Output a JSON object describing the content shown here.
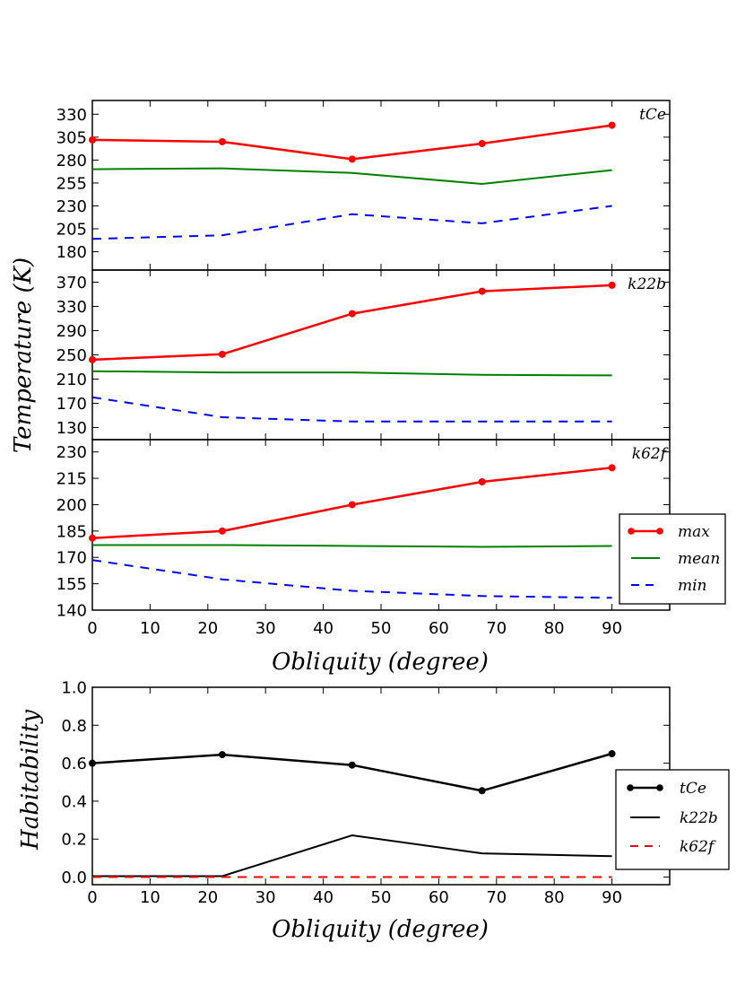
{
  "chart_data": [
    {
      "type": "line",
      "panel": "tCe",
      "panel_label": "tCe",
      "x": [
        0,
        22.5,
        45,
        67.5,
        90
      ],
      "ylim": [
        160,
        345
      ],
      "yticks": [
        180,
        205,
        230,
        255,
        280,
        305,
        330
      ],
      "series": [
        {
          "name": "max",
          "color": "#ff0000",
          "style": "solid-marker",
          "values": [
            302,
            300,
            281,
            298,
            318
          ]
        },
        {
          "name": "mean",
          "color": "#008000",
          "style": "solid",
          "values": [
            270,
            271,
            266,
            254,
            269
          ]
        },
        {
          "name": "min",
          "color": "#0000ff",
          "style": "dashed",
          "values": [
            194,
            198,
            221,
            211,
            230
          ]
        }
      ]
    },
    {
      "type": "line",
      "panel": "k22b",
      "panel_label": "k22b",
      "x": [
        0,
        22.5,
        45,
        67.5,
        90
      ],
      "ylim": [
        110,
        390
      ],
      "yticks": [
        130,
        170,
        210,
        250,
        290,
        330,
        370
      ],
      "series": [
        {
          "name": "max",
          "color": "#ff0000",
          "style": "solid-marker",
          "values": [
            242,
            251,
            318,
            355,
            365
          ]
        },
        {
          "name": "mean",
          "color": "#008000",
          "style": "solid",
          "values": [
            223,
            221,
            221,
            217,
            216
          ]
        },
        {
          "name": "min",
          "color": "#0000ff",
          "style": "dashed",
          "values": [
            180,
            147,
            140,
            140,
            140
          ]
        }
      ]
    },
    {
      "type": "line",
      "panel": "k62f",
      "panel_label": "k62f",
      "title": "",
      "xlabel": "Obliquity (degree)",
      "ylabel": "Temperature (K)",
      "x": [
        0,
        22.5,
        45,
        67.5,
        90
      ],
      "xlim": [
        0,
        100
      ],
      "xticks": [
        0,
        10,
        20,
        30,
        40,
        50,
        60,
        70,
        80,
        90
      ],
      "ylim": [
        140,
        237
      ],
      "yticks": [
        140,
        155,
        170,
        185,
        200,
        215,
        230
      ],
      "legend": "lower-right",
      "series": [
        {
          "name": "max",
          "color": "#ff0000",
          "style": "solid-marker",
          "values": [
            181,
            185,
            200,
            213,
            221
          ]
        },
        {
          "name": "mean",
          "color": "#008000",
          "style": "solid",
          "values": [
            177,
            177,
            176.5,
            176,
            176.5
          ]
        },
        {
          "name": "min",
          "color": "#0000ff",
          "style": "dashed",
          "values": [
            168.5,
            157.5,
            151,
            148,
            147
          ]
        }
      ]
    },
    {
      "type": "line",
      "panel": "habitability",
      "xlabel": "Obliquity (degree)",
      "ylabel": "Habitability",
      "x": [
        0,
        22.5,
        45,
        67.5,
        90
      ],
      "xlim": [
        0,
        100
      ],
      "xticks": [
        0,
        10,
        20,
        30,
        40,
        50,
        60,
        70,
        80,
        90
      ],
      "ylim": [
        -0.04,
        1.0
      ],
      "yticks": [
        "0.0",
        "0.2",
        "0.4",
        "0.6",
        "0.8",
        "1.0"
      ],
      "legend": "right",
      "series": [
        {
          "name": "tCe",
          "color": "#000000",
          "style": "solid-marker",
          "values": [
            0.6,
            0.645,
            0.59,
            0.455,
            0.65
          ]
        },
        {
          "name": "k22b",
          "color": "#000000",
          "style": "solid",
          "values": [
            0.005,
            0.005,
            0.22,
            0.125,
            0.11
          ]
        },
        {
          "name": "k62f",
          "color": "#ff0000",
          "style": "dashed",
          "values": [
            0.0,
            0.0,
            0.0,
            0.0,
            0.0
          ]
        }
      ]
    }
  ]
}
